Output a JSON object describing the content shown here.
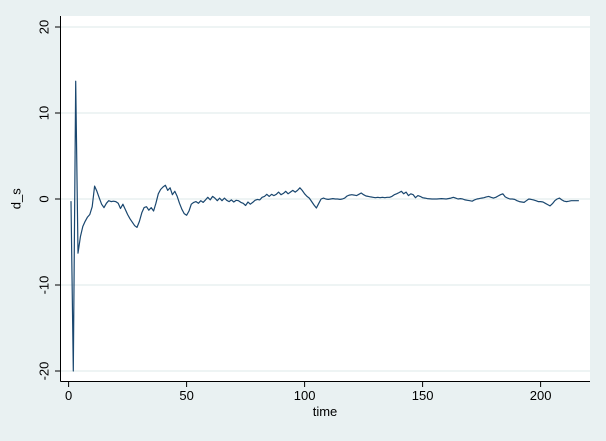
{
  "colors": {
    "background": "#e9f1f2",
    "plot_background": "#ffffff",
    "gridline": "#ddeaea",
    "axis": "#000000",
    "text": "#000000",
    "line": "#1a476f"
  },
  "chart_data": {
    "type": "line",
    "xlabel": "time",
    "ylabel": "d_s",
    "x_ticks": [
      0,
      50,
      100,
      150,
      200
    ],
    "y_ticks": [
      -20,
      -10,
      0,
      10,
      20
    ],
    "xlim": [
      -3.43,
      220.93
    ],
    "ylim": [
      -21.22,
      21.28
    ],
    "grid": "horizontal",
    "legend": "none",
    "series": [
      {
        "name": "d_s",
        "color": "#1a476f",
        "points": [
          [
            1,
            -0.3
          ],
          [
            2,
            -20.0
          ],
          [
            3,
            13.7
          ],
          [
            4,
            -6.3
          ],
          [
            5,
            -4.4
          ],
          [
            6,
            -3.2
          ],
          [
            7,
            -2.6
          ],
          [
            8,
            -2.1
          ],
          [
            9,
            -1.8
          ],
          [
            10,
            -0.9
          ],
          [
            11,
            1.5
          ],
          [
            12,
            0.9
          ],
          [
            13,
            0.1
          ],
          [
            14,
            -0.6
          ],
          [
            15,
            -1.0
          ],
          [
            16,
            -0.5
          ],
          [
            17,
            -0.2
          ],
          [
            18,
            -0.3
          ],
          [
            19,
            -0.25
          ],
          [
            20,
            -0.3
          ],
          [
            21,
            -0.5
          ],
          [
            22,
            -1.1
          ],
          [
            23,
            -0.6
          ],
          [
            24,
            -1.2
          ],
          [
            25,
            -1.8
          ],
          [
            26,
            -2.3
          ],
          [
            27,
            -2.7
          ],
          [
            28,
            -3.1
          ],
          [
            29,
            -3.3
          ],
          [
            30,
            -2.6
          ],
          [
            31,
            -1.6
          ],
          [
            32,
            -1.0
          ],
          [
            33,
            -0.9
          ],
          [
            34,
            -1.3
          ],
          [
            35,
            -1.0
          ],
          [
            36,
            -1.4
          ],
          [
            37,
            -0.5
          ],
          [
            38,
            0.6
          ],
          [
            39,
            1.1
          ],
          [
            40,
            1.4
          ],
          [
            41,
            1.6
          ],
          [
            42,
            1.0
          ],
          [
            43,
            1.3
          ],
          [
            44,
            0.5
          ],
          [
            45,
            0.9
          ],
          [
            46,
            0.3
          ],
          [
            47,
            -0.5
          ],
          [
            48,
            -1.2
          ],
          [
            49,
            -1.7
          ],
          [
            50,
            -1.9
          ],
          [
            51,
            -1.4
          ],
          [
            52,
            -0.6
          ],
          [
            53,
            -0.4
          ],
          [
            54,
            -0.3
          ],
          [
            55,
            -0.5
          ],
          [
            56,
            -0.2
          ],
          [
            57,
            -0.4
          ],
          [
            58,
            -0.1
          ],
          [
            59,
            0.2
          ],
          [
            60,
            -0.1
          ],
          [
            61,
            0.3
          ],
          [
            62,
            0.1
          ],
          [
            63,
            -0.2
          ],
          [
            64,
            0.1
          ],
          [
            65,
            -0.2
          ],
          [
            66,
            0.1
          ],
          [
            67,
            -0.15
          ],
          [
            68,
            -0.3
          ],
          [
            69,
            -0.1
          ],
          [
            70,
            -0.35
          ],
          [
            71,
            -0.15
          ],
          [
            72,
            -0.2
          ],
          [
            73,
            -0.4
          ],
          [
            74,
            -0.5
          ],
          [
            75,
            -0.75
          ],
          [
            76,
            -0.35
          ],
          [
            77,
            -0.6
          ],
          [
            78,
            -0.4
          ],
          [
            79,
            -0.15
          ],
          [
            80,
            -0.05
          ],
          [
            81,
            -0.1
          ],
          [
            82,
            0.2
          ],
          [
            83,
            0.3
          ],
          [
            84,
            0.55
          ],
          [
            85,
            0.3
          ],
          [
            86,
            0.55
          ],
          [
            87,
            0.4
          ],
          [
            88,
            0.55
          ],
          [
            89,
            0.8
          ],
          [
            90,
            0.5
          ],
          [
            91,
            0.65
          ],
          [
            92,
            0.9
          ],
          [
            93,
            0.6
          ],
          [
            94,
            0.8
          ],
          [
            95,
            1.0
          ],
          [
            96,
            0.8
          ],
          [
            97,
            1.0
          ],
          [
            98,
            1.3
          ],
          [
            99,
            1.0
          ],
          [
            100,
            0.6
          ],
          [
            101,
            0.3
          ],
          [
            102,
            0.1
          ],
          [
            103,
            -0.3
          ],
          [
            104,
            -0.7
          ],
          [
            105,
            -1.05
          ],
          [
            106,
            -0.5
          ],
          [
            107,
            0.0
          ],
          [
            108,
            0.1
          ],
          [
            109,
            0.0
          ],
          [
            110,
            -0.05
          ],
          [
            111,
            0.0
          ],
          [
            112,
            0.05
          ],
          [
            113,
            0.0
          ],
          [
            114,
            0.0
          ],
          [
            115,
            -0.05
          ],
          [
            116,
            0.0
          ],
          [
            117,
            0.1
          ],
          [
            118,
            0.35
          ],
          [
            119,
            0.45
          ],
          [
            120,
            0.5
          ],
          [
            121,
            0.45
          ],
          [
            122,
            0.4
          ],
          [
            123,
            0.55
          ],
          [
            124,
            0.7
          ],
          [
            125,
            0.5
          ],
          [
            126,
            0.35
          ],
          [
            127,
            0.3
          ],
          [
            128,
            0.25
          ],
          [
            129,
            0.2
          ],
          [
            130,
            0.15
          ],
          [
            131,
            0.2
          ],
          [
            132,
            0.15
          ],
          [
            133,
            0.2
          ],
          [
            134,
            0.15
          ],
          [
            135,
            0.2
          ],
          [
            136,
            0.2
          ],
          [
            137,
            0.3
          ],
          [
            138,
            0.5
          ],
          [
            139,
            0.6
          ],
          [
            140,
            0.75
          ],
          [
            141,
            0.9
          ],
          [
            142,
            0.6
          ],
          [
            143,
            0.8
          ],
          [
            144,
            0.4
          ],
          [
            145,
            0.6
          ],
          [
            146,
            0.5
          ],
          [
            147,
            0.15
          ],
          [
            148,
            0.4
          ],
          [
            149,
            0.3
          ],
          [
            150,
            0.15
          ],
          [
            151,
            0.1
          ],
          [
            152,
            0.05
          ],
          [
            154,
            0.0
          ],
          [
            156,
            0.0
          ],
          [
            158,
            0.05
          ],
          [
            160,
            0.0
          ],
          [
            162,
            0.1
          ],
          [
            163,
            0.2
          ],
          [
            164,
            0.1
          ],
          [
            165,
            0.0
          ],
          [
            166,
            0.05
          ],
          [
            167,
            0.0
          ],
          [
            168,
            -0.1
          ],
          [
            169,
            -0.15
          ],
          [
            170,
            -0.2
          ],
          [
            171,
            -0.25
          ],
          [
            172,
            -0.1
          ],
          [
            173,
            0.0
          ],
          [
            174,
            0.05
          ],
          [
            175,
            0.1
          ],
          [
            176,
            0.15
          ],
          [
            177,
            0.25
          ],
          [
            178,
            0.3
          ],
          [
            179,
            0.2
          ],
          [
            180,
            0.1
          ],
          [
            181,
            0.2
          ],
          [
            182,
            0.35
          ],
          [
            183,
            0.5
          ],
          [
            184,
            0.6
          ],
          [
            185,
            0.25
          ],
          [
            186,
            0.1
          ],
          [
            187,
            0.0
          ],
          [
            188,
            0.0
          ],
          [
            189,
            -0.05
          ],
          [
            190,
            -0.2
          ],
          [
            191,
            -0.3
          ],
          [
            192,
            -0.35
          ],
          [
            193,
            -0.4
          ],
          [
            194,
            -0.2
          ],
          [
            195,
            0.0
          ],
          [
            196,
            -0.05
          ],
          [
            197,
            -0.1
          ],
          [
            198,
            -0.2
          ],
          [
            199,
            -0.3
          ],
          [
            200,
            -0.3
          ],
          [
            201,
            -0.35
          ],
          [
            202,
            -0.5
          ],
          [
            203,
            -0.65
          ],
          [
            204,
            -0.8
          ],
          [
            205,
            -0.55
          ],
          [
            206,
            -0.2
          ],
          [
            207,
            0.0
          ],
          [
            208,
            0.1
          ],
          [
            209,
            -0.1
          ],
          [
            210,
            -0.25
          ],
          [
            211,
            -0.3
          ],
          [
            212,
            -0.25
          ],
          [
            213,
            -0.2
          ],
          [
            214,
            -0.2
          ],
          [
            215,
            -0.2
          ],
          [
            216,
            -0.2
          ]
        ]
      }
    ]
  }
}
